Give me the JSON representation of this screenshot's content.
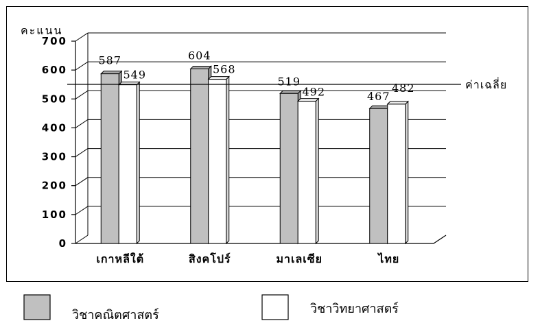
{
  "chart_data": {
    "type": "bar",
    "ylabel": "คะแนน",
    "ylim": [
      0,
      700
    ],
    "yticks": [
      0,
      100,
      200,
      300,
      400,
      500,
      600,
      700
    ],
    "grid": true,
    "categories": [
      "เกาหลีใต้",
      "สิงคโปร์",
      "มาเลเซีย",
      "ไทย"
    ],
    "series": [
      {
        "name": "วิชาคณิตศาสตร์",
        "values": [
          587,
          604,
          519,
          467
        ],
        "color": "#c0c0c0"
      },
      {
        "name": "วิชาวิทยาศาสตร์",
        "values": [
          549,
          568,
          492,
          482
        ],
        "color": "#ffffff"
      }
    ],
    "reference_line": {
      "label": "ค่าเฉลี่ย",
      "value": 522
    },
    "legend_position": "bottom"
  }
}
